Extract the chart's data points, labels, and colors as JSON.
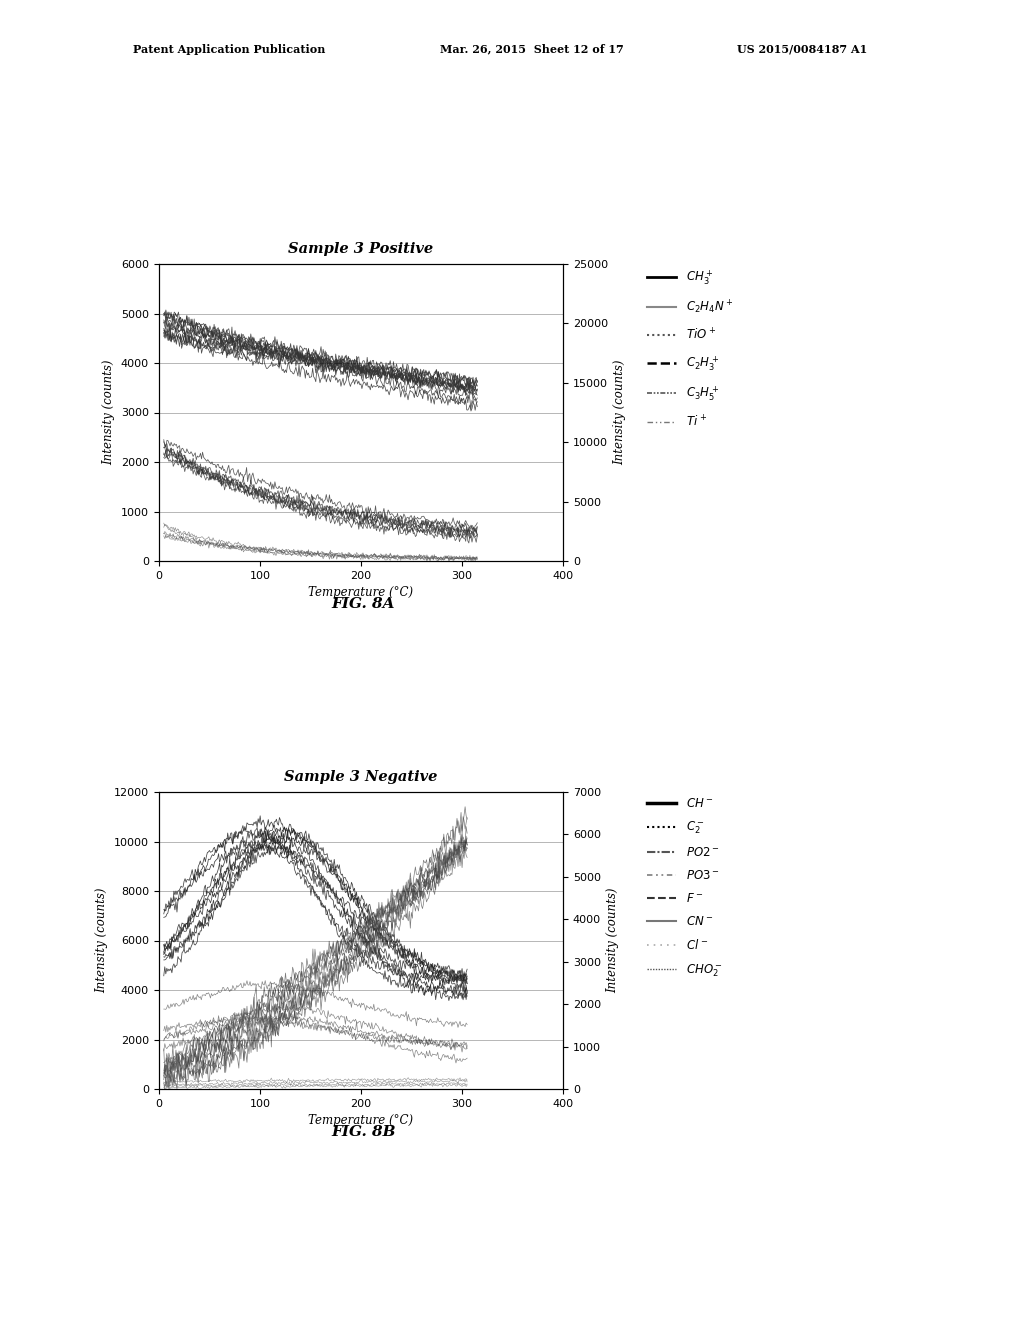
{
  "fig_width": 10.24,
  "fig_height": 13.2,
  "bg_color": "#ffffff",
  "header_left": "Patent Application Publication",
  "header_mid": "Mar. 26, 2015  Sheet 12 of 17",
  "header_right": "US 2015/0084187 A1",
  "chart_a": {
    "title": "Sample 3 Positive",
    "xlabel": "Temperature (°C)",
    "ylabel_left": "Intensity (counts)",
    "ylabel_right": "Intensity (counts)",
    "xlim": [
      0,
      400
    ],
    "ylim_left": [
      0,
      6000
    ],
    "ylim_right": [
      0,
      25000
    ],
    "yticks_left": [
      0,
      1000,
      2000,
      3000,
      4000,
      5000,
      6000
    ],
    "yticks_right": [
      0,
      5000,
      10000,
      15000,
      20000,
      25000
    ],
    "xticks": [
      0,
      100,
      200,
      300,
      400
    ],
    "figcaption": "FIG. 8A"
  },
  "chart_b": {
    "title": "Sample 3 Negative",
    "xlabel": "Temperature (°C)",
    "ylabel_left": "Intensity (counts)",
    "ylabel_right": "Intensity (counts)",
    "xlim": [
      0,
      400
    ],
    "ylim_left": [
      0,
      12000
    ],
    "ylim_right": [
      0,
      7000
    ],
    "yticks_left": [
      0,
      2000,
      4000,
      6000,
      8000,
      10000,
      12000
    ],
    "yticks_right": [
      0,
      1000,
      2000,
      3000,
      4000,
      5000,
      6000,
      7000
    ],
    "xticks": [
      0,
      100,
      200,
      300,
      400
    ],
    "figcaption": "FIG. 8B"
  }
}
